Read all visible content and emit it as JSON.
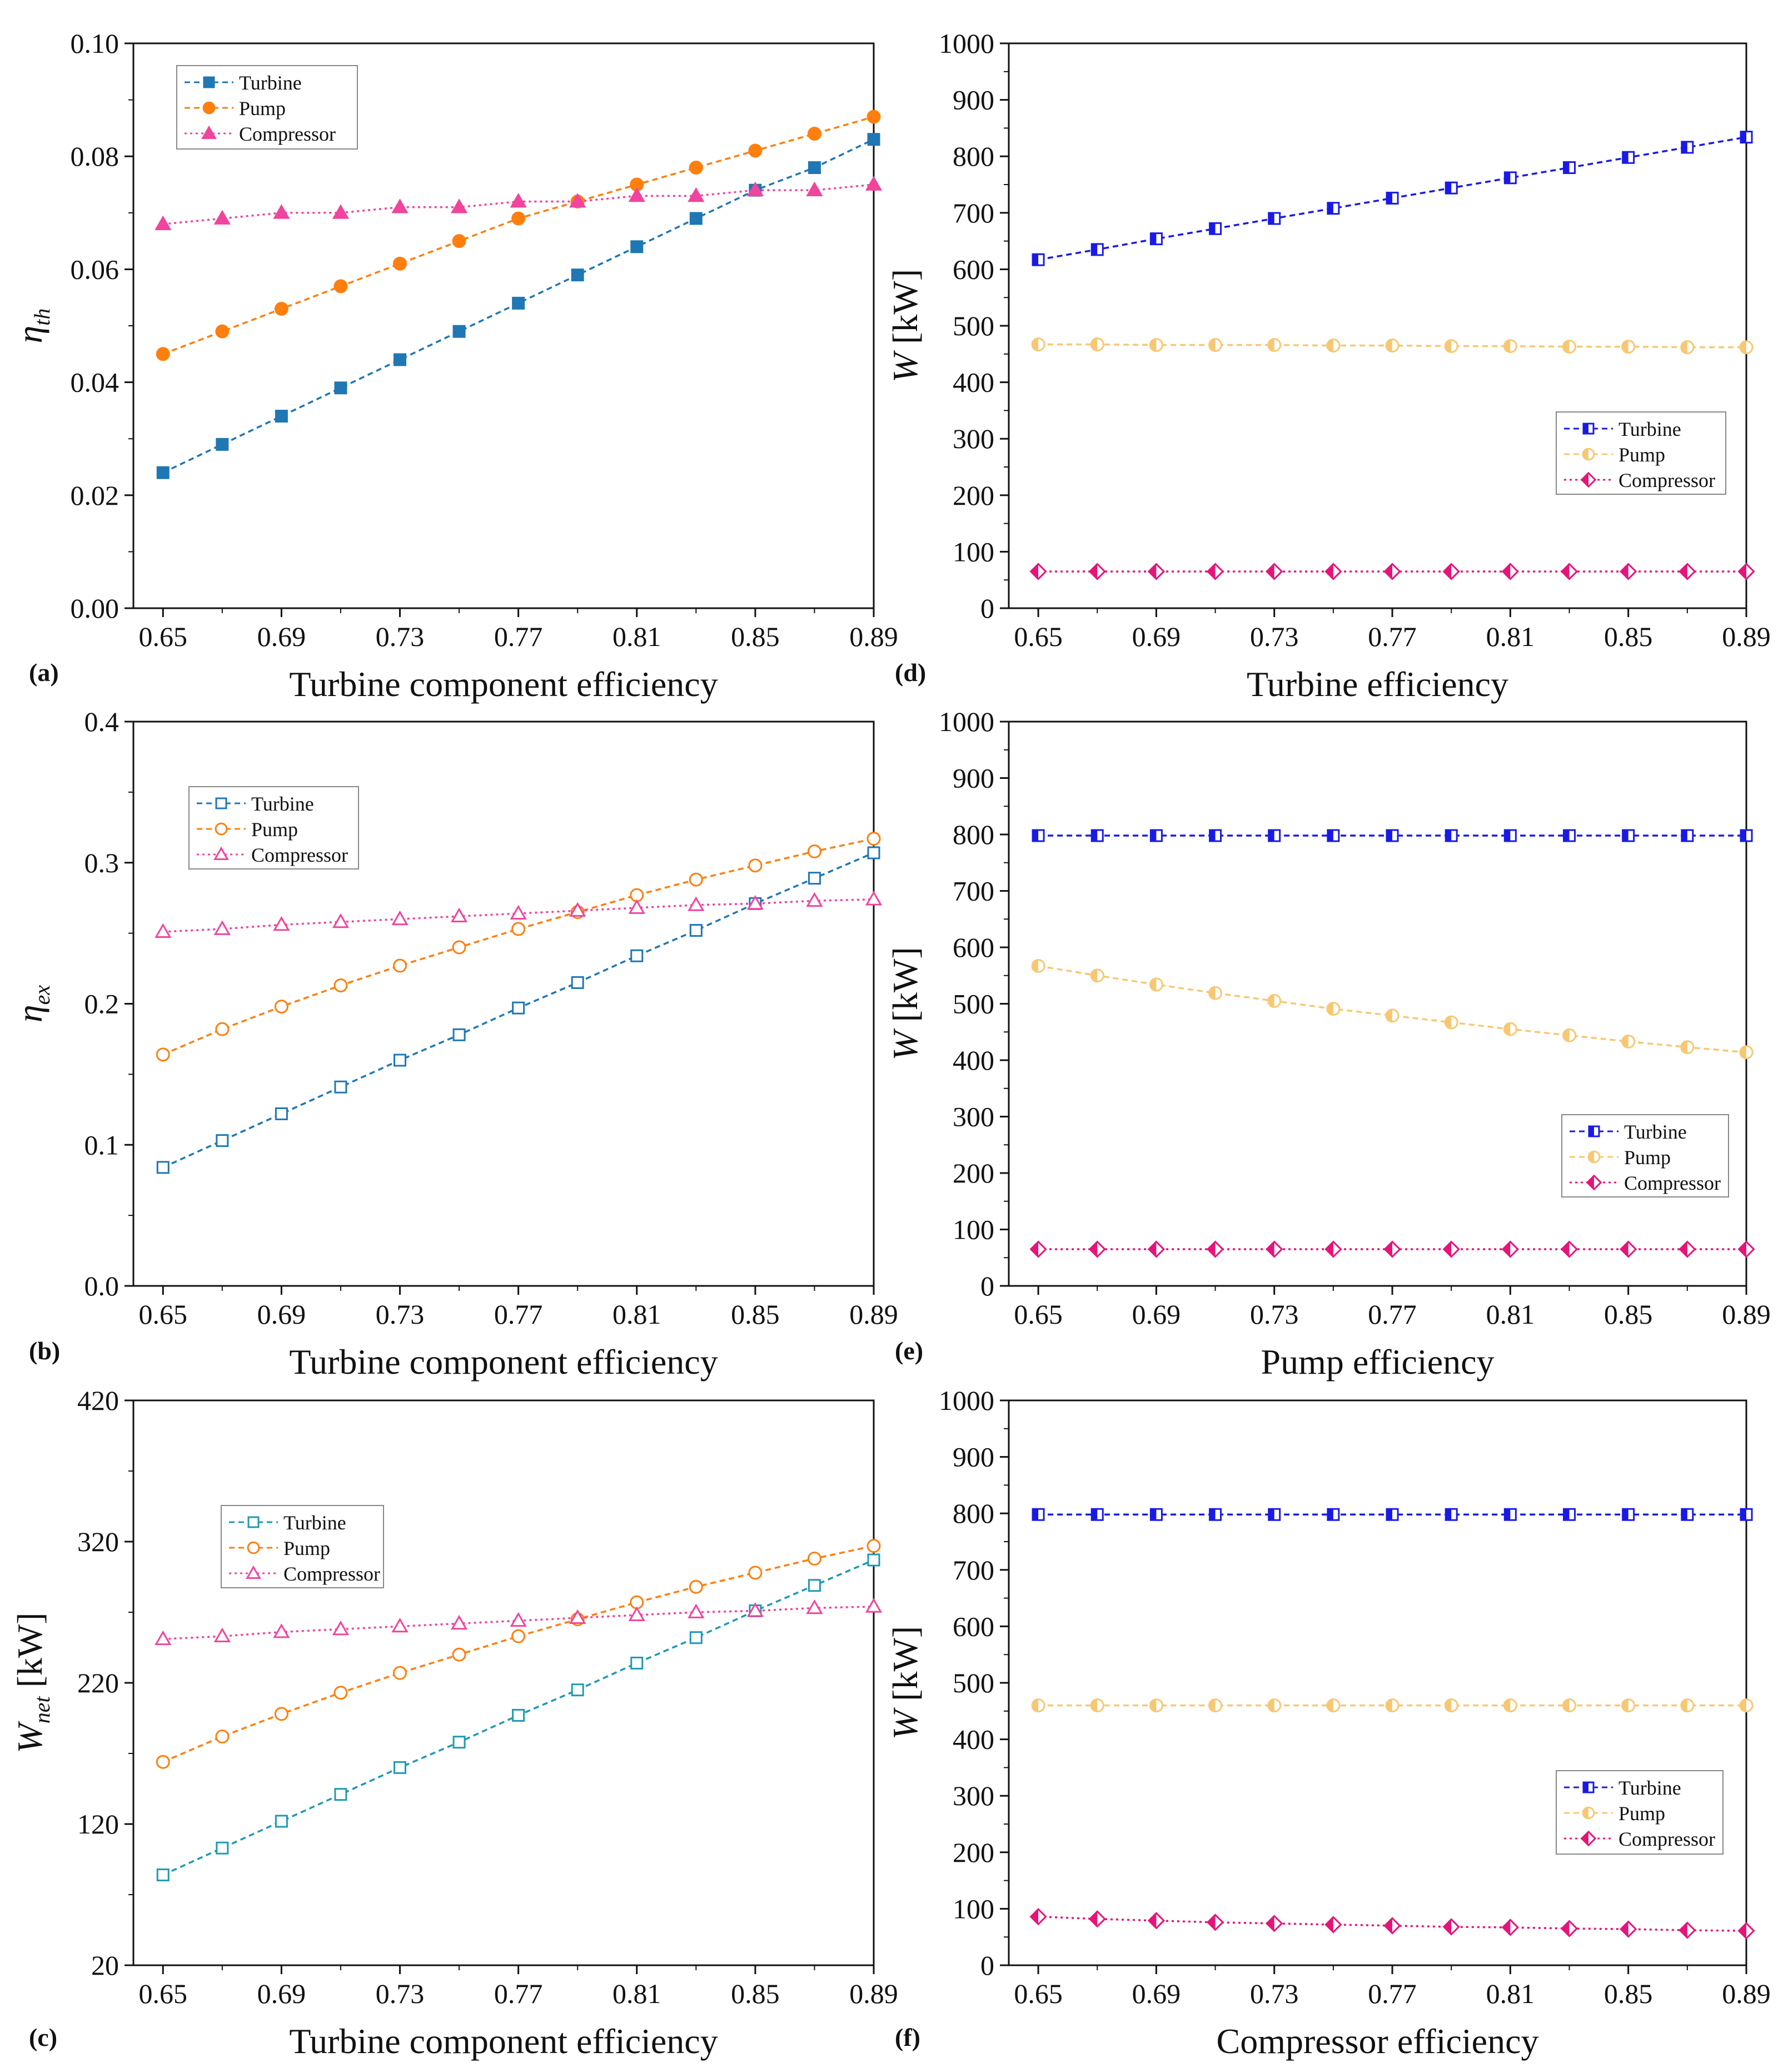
{
  "figure": {
    "background": "#ffffff",
    "axis_color": "#111111"
  },
  "chart_data": [
    {
      "id": "a",
      "type": "line",
      "panel_label": "(a)",
      "xlabel": "Turbine component efficiency",
      "ylabel": "η_th",
      "ylabel_main": "η",
      "ylabel_sub": "th",
      "xlim": [
        0.64,
        0.89
      ],
      "ylim": [
        0.0,
        0.1
      ],
      "xticks": [
        0.65,
        0.69,
        0.73,
        0.77,
        0.81,
        0.85,
        0.89
      ],
      "xtick_labels": [
        "0.65",
        "0.69",
        "0.73",
        "0.77",
        "0.81",
        "0.85",
        "0.89"
      ],
      "yticks": [
        0.0,
        0.02,
        0.04,
        0.06,
        0.08,
        0.1
      ],
      "ytick_labels": [
        "0.00",
        "0.02",
        "0.04",
        "0.06",
        "0.08",
        "0.10"
      ],
      "legend_position": "top-left",
      "x": [
        0.65,
        0.67,
        0.69,
        0.71,
        0.73,
        0.75,
        0.77,
        0.79,
        0.81,
        0.83,
        0.85,
        0.87,
        0.89
      ],
      "series": [
        {
          "name": "Turbine",
          "color": "#1f77b4",
          "marker": "square",
          "filled": true,
          "values": [
            0.024,
            0.029,
            0.034,
            0.039,
            0.044,
            0.049,
            0.054,
            0.059,
            0.064,
            0.069,
            0.074,
            0.078,
            0.083
          ]
        },
        {
          "name": "Pump",
          "color": "#ff7f0e",
          "marker": "circle",
          "filled": true,
          "values": [
            0.045,
            0.049,
            0.053,
            0.057,
            0.061,
            0.065,
            0.069,
            0.072,
            0.075,
            0.078,
            0.081,
            0.084,
            0.087
          ]
        },
        {
          "name": "Compressor",
          "color": "#f0449e",
          "marker": "triangle",
          "filled": true,
          "values": [
            0.068,
            0.069,
            0.07,
            0.07,
            0.071,
            0.071,
            0.072,
            0.072,
            0.073,
            0.073,
            0.074,
            0.074,
            0.075
          ]
        }
      ]
    },
    {
      "id": "b",
      "type": "line",
      "panel_label": "(b)",
      "xlabel": "Turbine component efficiency",
      "ylabel": "η_ex",
      "ylabel_main": "η",
      "ylabel_sub": "ex",
      "xlim": [
        0.64,
        0.89
      ],
      "ylim": [
        0.0,
        0.4
      ],
      "xticks": [
        0.65,
        0.69,
        0.73,
        0.77,
        0.81,
        0.85,
        0.89
      ],
      "xtick_labels": [
        "0.65",
        "0.69",
        "0.73",
        "0.77",
        "0.81",
        "0.85",
        "0.89"
      ],
      "yticks": [
        0.0,
        0.1,
        0.2,
        0.3,
        0.4
      ],
      "ytick_labels": [
        "0.0",
        "0.1",
        "0.2",
        "0.3",
        "0.4"
      ],
      "legend_position": "top-left",
      "x": [
        0.65,
        0.67,
        0.69,
        0.71,
        0.73,
        0.75,
        0.77,
        0.79,
        0.81,
        0.83,
        0.85,
        0.87,
        0.89
      ],
      "series": [
        {
          "name": "Turbine",
          "color": "#1f77b4",
          "marker": "square",
          "filled": false,
          "values": [
            0.084,
            0.103,
            0.122,
            0.141,
            0.16,
            0.178,
            0.197,
            0.215,
            0.234,
            0.252,
            0.271,
            0.289,
            0.307
          ]
        },
        {
          "name": "Pump",
          "color": "#ff7f0e",
          "marker": "circle",
          "filled": false,
          "values": [
            0.164,
            0.182,
            0.198,
            0.213,
            0.227,
            0.24,
            0.253,
            0.265,
            0.277,
            0.288,
            0.298,
            0.308,
            0.317
          ]
        },
        {
          "name": "Compressor",
          "color": "#f0449e",
          "marker": "triangle",
          "filled": false,
          "values": [
            0.251,
            0.253,
            0.256,
            0.258,
            0.26,
            0.262,
            0.264,
            0.266,
            0.268,
            0.27,
            0.271,
            0.273,
            0.274
          ]
        }
      ]
    },
    {
      "id": "c",
      "type": "line",
      "panel_label": "(c)",
      "xlabel": "Turbine component efficiency",
      "ylabel": "W_net [kW]",
      "ylabel_main": "W",
      "ylabel_sub": "net",
      "ylabel_unit": " [kW]",
      "xlim": [
        0.64,
        0.89
      ],
      "ylim": [
        20,
        420
      ],
      "xticks": [
        0.65,
        0.69,
        0.73,
        0.77,
        0.81,
        0.85,
        0.89
      ],
      "xtick_labels": [
        "0.65",
        "0.69",
        "0.73",
        "0.77",
        "0.81",
        "0.85",
        "0.89"
      ],
      "yticks": [
        20,
        120,
        220,
        320,
        420
      ],
      "ytick_labels": [
        "20",
        "120",
        "220",
        "320",
        "420"
      ],
      "legend_position": "upper-left",
      "x": [
        0.65,
        0.67,
        0.69,
        0.71,
        0.73,
        0.75,
        0.77,
        0.79,
        0.81,
        0.83,
        0.85,
        0.87,
        0.89
      ],
      "series": [
        {
          "name": "Turbine",
          "color": "#1f99b4",
          "marker": "square",
          "filled": false,
          "values": [
            84,
            103,
            122,
            141,
            160,
            178,
            197,
            215,
            234,
            252,
            271,
            289,
            307
          ]
        },
        {
          "name": "Pump",
          "color": "#ff7f0e",
          "marker": "circle",
          "filled": false,
          "values": [
            164,
            182,
            198,
            213,
            227,
            240,
            253,
            265,
            277,
            288,
            298,
            308,
            317
          ]
        },
        {
          "name": "Compressor",
          "color": "#f0449e",
          "marker": "triangle",
          "filled": false,
          "values": [
            251,
            253,
            256,
            258,
            260,
            262,
            264,
            266,
            268,
            270,
            271,
            273,
            274
          ]
        }
      ]
    },
    {
      "id": "d",
      "type": "line",
      "panel_label": "(d)",
      "xlabel": "Turbine efficiency",
      "ylabel": "W [kW]",
      "ylabel_main": "W",
      "ylabel_sub": "",
      "ylabel_unit": " [kW]",
      "xlim": [
        0.64,
        0.89
      ],
      "ylim": [
        0,
        1000
      ],
      "xticks": [
        0.65,
        0.69,
        0.73,
        0.77,
        0.81,
        0.85,
        0.89
      ],
      "xtick_labels": [
        "0.65",
        "0.69",
        "0.73",
        "0.77",
        "0.81",
        "0.85",
        "0.89"
      ],
      "yticks": [
        0,
        100,
        200,
        300,
        400,
        500,
        600,
        700,
        800,
        900,
        1000
      ],
      "ytick_labels": [
        "0",
        "100",
        "200",
        "300",
        "400",
        "500",
        "600",
        "700",
        "800",
        "900",
        "1000"
      ],
      "legend_position": "right-middle",
      "x": [
        0.65,
        0.67,
        0.69,
        0.71,
        0.73,
        0.75,
        0.77,
        0.79,
        0.81,
        0.83,
        0.85,
        0.87,
        0.89
      ],
      "series": [
        {
          "name": "Turbine",
          "color": "#1a1ae6",
          "marker": "half-square",
          "filled": false,
          "values": [
            617,
            635,
            654,
            672,
            690,
            708,
            726,
            744,
            762,
            780,
            798,
            816,
            834
          ]
        },
        {
          "name": "Pump",
          "color": "#f7c873",
          "marker": "half-circle",
          "filled": false,
          "values": [
            467,
            467,
            466,
            466,
            466,
            465,
            465,
            464,
            464,
            463,
            463,
            462,
            462
          ]
        },
        {
          "name": "Compressor",
          "color": "#e6147a",
          "marker": "half-diamond",
          "filled": false,
          "values": [
            65,
            65,
            65,
            65,
            65,
            65,
            65,
            65,
            65,
            65,
            65,
            65,
            65
          ]
        }
      ]
    },
    {
      "id": "e",
      "type": "line",
      "panel_label": "(e)",
      "xlabel": "Pump efficiency",
      "ylabel": "W [kW]",
      "ylabel_main": "W",
      "ylabel_sub": "",
      "ylabel_unit": " [kW]",
      "xlim": [
        0.64,
        0.89
      ],
      "ylim": [
        0,
        1000
      ],
      "xticks": [
        0.65,
        0.69,
        0.73,
        0.77,
        0.81,
        0.85,
        0.89
      ],
      "xtick_labels": [
        "0.65",
        "0.69",
        "0.73",
        "0.77",
        "0.81",
        "0.85",
        "0.89"
      ],
      "yticks": [
        0,
        100,
        200,
        300,
        400,
        500,
        600,
        700,
        800,
        900,
        1000
      ],
      "ytick_labels": [
        "0",
        "100",
        "200",
        "300",
        "400",
        "500",
        "600",
        "700",
        "800",
        "900",
        "1000"
      ],
      "legend_position": "right-lower",
      "x": [
        0.65,
        0.67,
        0.69,
        0.71,
        0.73,
        0.75,
        0.77,
        0.79,
        0.81,
        0.83,
        0.85,
        0.87,
        0.89
      ],
      "series": [
        {
          "name": "Turbine",
          "color": "#1a1ae6",
          "marker": "half-square",
          "filled": false,
          "values": [
            798,
            798,
            798,
            798,
            798,
            798,
            798,
            798,
            798,
            798,
            798,
            798,
            798
          ]
        },
        {
          "name": "Pump",
          "color": "#f7c873",
          "marker": "half-circle",
          "filled": false,
          "values": [
            567,
            550,
            534,
            519,
            505,
            491,
            479,
            467,
            455,
            444,
            433,
            423,
            414
          ]
        },
        {
          "name": "Compressor",
          "color": "#e6147a",
          "marker": "half-diamond",
          "filled": false,
          "values": [
            65,
            65,
            65,
            65,
            65,
            65,
            65,
            65,
            65,
            65,
            65,
            65,
            65
          ]
        }
      ]
    },
    {
      "id": "f",
      "type": "line",
      "panel_label": "(f)",
      "xlabel": "Compressor efficiency",
      "ylabel": "W [kW]",
      "ylabel_main": "W",
      "ylabel_sub": "",
      "ylabel_unit": " [kW]",
      "xlim": [
        0.64,
        0.89
      ],
      "ylim": [
        0,
        1000
      ],
      "xticks": [
        0.65,
        0.69,
        0.73,
        0.77,
        0.81,
        0.85,
        0.89
      ],
      "xtick_labels": [
        "0.65",
        "0.69",
        "0.73",
        "0.77",
        "0.81",
        "0.85",
        "0.89"
      ],
      "yticks": [
        0,
        100,
        200,
        300,
        400,
        500,
        600,
        700,
        800,
        900,
        1000
      ],
      "ytick_labels": [
        "0",
        "100",
        "200",
        "300",
        "400",
        "500",
        "600",
        "700",
        "800",
        "900",
        "1000"
      ],
      "legend_position": "right-lower",
      "x": [
        0.65,
        0.67,
        0.69,
        0.71,
        0.73,
        0.75,
        0.77,
        0.79,
        0.81,
        0.83,
        0.85,
        0.87,
        0.89
      ],
      "series": [
        {
          "name": "Turbine",
          "color": "#1a1ae6",
          "marker": "half-square",
          "filled": false,
          "values": [
            798,
            798,
            798,
            798,
            798,
            798,
            798,
            798,
            798,
            798,
            798,
            798,
            798
          ]
        },
        {
          "name": "Pump",
          "color": "#f7c873",
          "marker": "half-circle",
          "filled": false,
          "values": [
            460,
            460,
            460,
            460,
            460,
            460,
            460,
            460,
            460,
            460,
            460,
            460,
            460
          ]
        },
        {
          "name": "Compressor",
          "color": "#e6147a",
          "marker": "half-diamond",
          "filled": false,
          "values": [
            86,
            82,
            79,
            76,
            74,
            72,
            70,
            68,
            67,
            65,
            64,
            62,
            61
          ]
        }
      ]
    }
  ]
}
